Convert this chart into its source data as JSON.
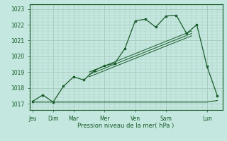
{
  "bg_color": "#c4e8e0",
  "grid_color": "#a8c8bc",
  "line_color": "#1a5c2a",
  "title": "Pression niveau de la mer( hPa )",
  "ylim": [
    1016.6,
    1023.3
  ],
  "yticks": [
    1017,
    1018,
    1019,
    1020,
    1021,
    1022,
    1023
  ],
  "days": [
    "Jeu",
    "Dim",
    "Mar",
    "Mer",
    "Ven",
    "Sam",
    "Lun"
  ],
  "day_positions": [
    0,
    2,
    4,
    7,
    10,
    13,
    17
  ],
  "xlim": [
    -0.3,
    18.5
  ],
  "main_x": [
    0,
    1,
    2,
    3,
    4,
    5,
    6,
    7,
    7.5,
    8,
    9,
    9.5,
    10,
    10.5,
    11,
    12,
    13,
    14,
    15,
    16,
    17,
    18
  ],
  "main_y": [
    1017.15,
    1017.55,
    1017.1,
    1018.1,
    1018.7,
    1018.5,
    1019.1,
    1019.4,
    1019.5,
    1020.5,
    1022.25,
    1022.35,
    1022.55,
    1022.6,
    1021.85,
    1021.85,
    1022.55,
    1022.6,
    1021.45,
    1022.0,
    1019.35,
    1017.5
  ],
  "main_x2": [
    0,
    1,
    2,
    3,
    4,
    5,
    6,
    7,
    8,
    9,
    10,
    11,
    12,
    13,
    14,
    15,
    16,
    17,
    18
  ],
  "main_y2": [
    1017.15,
    1017.55,
    1017.1,
    1018.1,
    1018.7,
    1018.5,
    1019.1,
    1019.4,
    1019.55,
    1020.5,
    1022.25,
    1022.35,
    1021.85,
    1022.55,
    1022.6,
    1021.45,
    1022.0,
    1019.35,
    1017.5
  ],
  "flat_x": [
    0,
    5,
    10,
    13,
    17,
    18
  ],
  "flat_y": [
    1017.1,
    1017.1,
    1017.1,
    1017.1,
    1017.1,
    1017.2
  ],
  "trend_lines": [
    {
      "x": [
        5.5,
        15.5
      ],
      "y": [
        1019.0,
        1021.6
      ]
    },
    {
      "x": [
        5.5,
        15.5
      ],
      "y": [
        1018.85,
        1021.45
      ]
    },
    {
      "x": [
        5.5,
        15.5
      ],
      "y": [
        1018.7,
        1021.3
      ]
    }
  ]
}
